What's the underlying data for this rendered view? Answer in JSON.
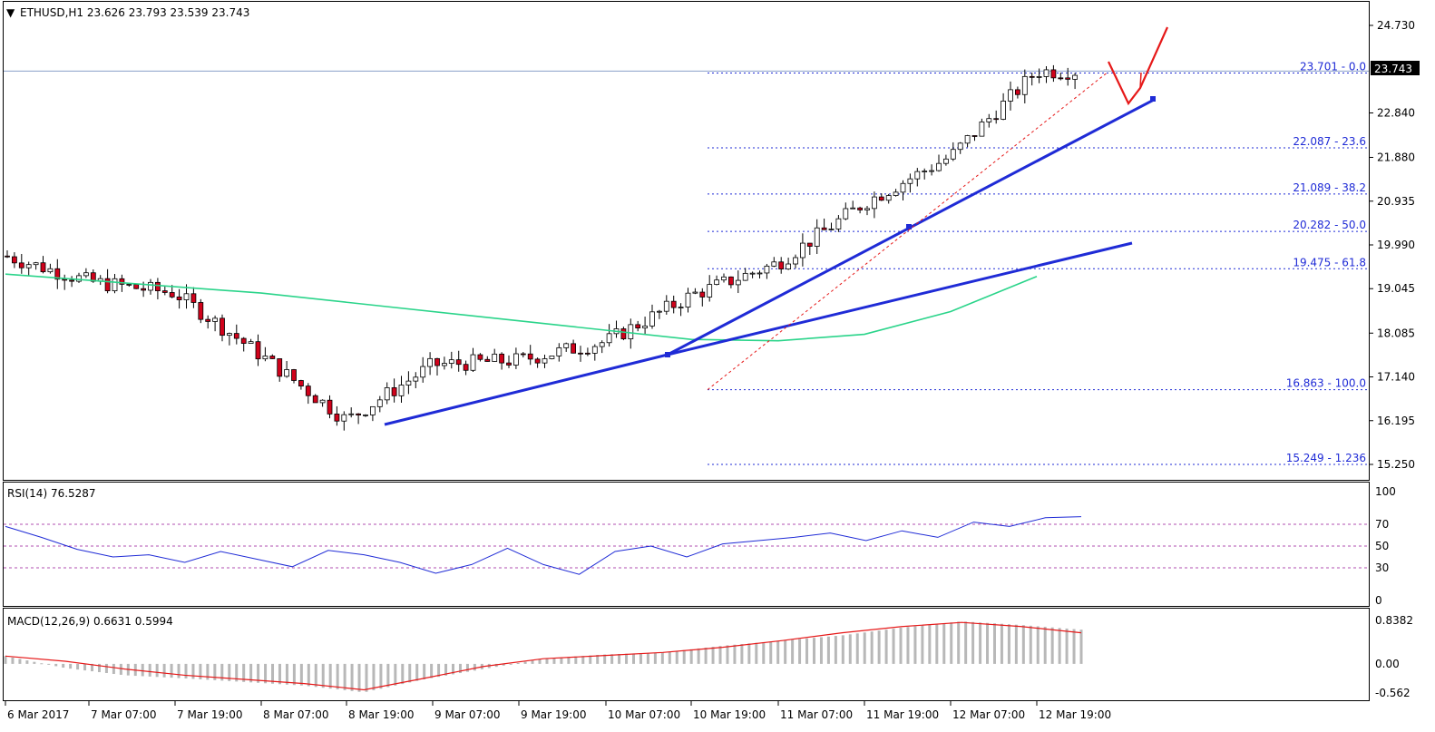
{
  "chart_data": [
    {
      "type": "candlestick",
      "header": {
        "symbol": "ETHUSD,H1",
        "open": "23.626",
        "high": "23.793",
        "low": "23.539",
        "close": "23.743"
      },
      "price_axis": {
        "ticks": [
          "24.730",
          "22.840",
          "21.880",
          "20.935",
          "19.990",
          "19.045",
          "18.085",
          "17.140",
          "16.195",
          "15.250"
        ],
        "ylim": [
          15.25,
          24.73
        ],
        "current_price": "23.743"
      },
      "time_axis": {
        "ticks": [
          "6 Mar 2017",
          "7 Mar 07:00",
          "7 Mar 19:00",
          "8 Mar 07:00",
          "8 Mar 19:00",
          "9 Mar 07:00",
          "9 Mar 19:00",
          "10 Mar 07:00",
          "10 Mar 19:00",
          "11 Mar 07:00",
          "11 Mar 19:00",
          "12 Mar 07:00",
          "12 Mar 19:00"
        ]
      },
      "price_path": [
        [
          "6 Mar 2017",
          19.75
        ],
        [
          "7 Mar 07:00",
          19.2
        ],
        [
          "7 Mar 19:00",
          18.95
        ],
        [
          "8 Mar 07:00",
          17.6
        ],
        [
          "8 Mar 19:00",
          16.2
        ],
        [
          "9 Mar 07:00",
          17.4
        ],
        [
          "9 Mar 19:00",
          17.5
        ],
        [
          "10 Mar 07:00",
          17.9
        ],
        [
          "10 Mar 19:00",
          18.9
        ],
        [
          "11 Mar 07:00",
          19.6
        ],
        [
          "11 Mar 19:00",
          20.9
        ],
        [
          "12 Mar 07:00",
          21.9
        ],
        [
          "12 Mar 19:00",
          23.74
        ]
      ],
      "moving_average": [
        [
          "6 Mar 2017",
          19.36
        ],
        [
          "8 Mar 07:00",
          18.95
        ],
        [
          "9 Mar 19:00",
          18.35
        ],
        [
          "10 Mar 19:00",
          17.95
        ],
        [
          "11 Mar 07:00",
          17.92
        ],
        [
          "11 Mar 19:00",
          18.06
        ],
        [
          "12 Mar 07:00",
          18.55
        ],
        [
          "12 Mar 19:00",
          19.31
        ]
      ],
      "fibonacci": [
        {
          "price": 23.701,
          "label": "23.701 - 0.0"
        },
        {
          "price": 22.087,
          "label": "22.087 - 23.6"
        },
        {
          "price": 21.089,
          "label": "21.089 - 38.2"
        },
        {
          "price": 20.282,
          "label": "20.282 - 50.0"
        },
        {
          "price": 19.475,
          "label": "19.475 - 61.8"
        },
        {
          "price": 16.863,
          "label": "16.863 - 100.0"
        },
        {
          "price": 15.249,
          "label": "15.249 - 1.236"
        }
      ],
      "colors": {
        "bull": "#ffffff",
        "bear": "#d0021b",
        "trendline": "#1f2bd6",
        "ma": "#2ad48a",
        "fib": "#1f2bd6",
        "forecast": "#e61919"
      }
    },
    {
      "type": "line",
      "label": "RSI(14) 76.5287",
      "ylim": [
        0,
        100
      ],
      "ticks": [
        "100",
        "70",
        "50",
        "30",
        "0"
      ],
      "levels": [
        70,
        50,
        30
      ],
      "series": [
        {
          "values": [
            68,
            58,
            47,
            40,
            42,
            35,
            45,
            38,
            31,
            46,
            42,
            35,
            25,
            33,
            48,
            33,
            24,
            45,
            50,
            40,
            52,
            55,
            58,
            62,
            55,
            64,
            58,
            72,
            68,
            76,
            77
          ]
        }
      ]
    },
    {
      "type": "bar",
      "label": "MACD(12,26,9) 0.6631 0.5994",
      "ylim": [
        -0.562,
        0.8382
      ],
      "ticks": [
        "0.8382",
        "0.00",
        "-0.562"
      ],
      "histogram": [
        0.15,
        -0.08,
        -0.22,
        -0.28,
        -0.35,
        -0.42,
        -0.55,
        -0.3,
        -0.1,
        0.1,
        0.18,
        0.22,
        0.35,
        0.45,
        0.55,
        0.7,
        0.82,
        0.75,
        0.66
      ],
      "signal": [
        0.15,
        0.05,
        -0.1,
        -0.22,
        -0.3,
        -0.38,
        -0.5,
        -0.28,
        -0.05,
        0.1,
        0.16,
        0.22,
        0.32,
        0.45,
        0.6,
        0.72,
        0.8,
        0.72,
        0.6
      ]
    }
  ]
}
